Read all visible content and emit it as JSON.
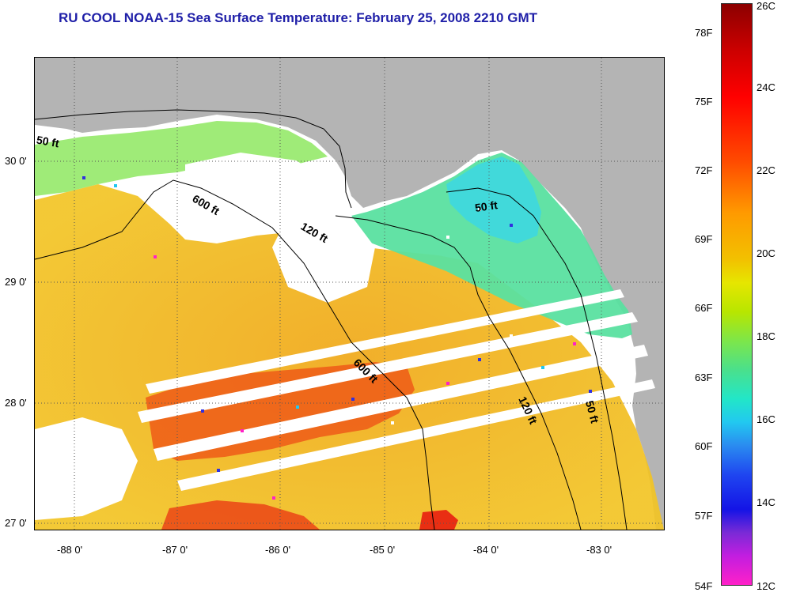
{
  "title": "RU COOL  NOAA-15  Sea Surface Temperature:  February 25, 2008 2210 GMT",
  "map": {
    "latitude_labels": [
      "30 0'",
      "29 0'",
      "28 0'",
      "27 0'"
    ],
    "longitude_labels": [
      "-88 0'",
      "-87 0'",
      "-86 0'",
      "-85 0'",
      "-84 0'",
      "-83 0'"
    ],
    "contour_labels": [
      "50 ft",
      "600 ft",
      "120 ft",
      "50 ft",
      "600 ft",
      "120 ft",
      "50 ft"
    ],
    "colors": {
      "land": "#b4b4b4",
      "ocean_cloud": "#ffffff",
      "grid": "#555555",
      "contour": "#000000"
    }
  },
  "colorbar": {
    "fahrenheit_labels": [
      "78F",
      "75F",
      "72F",
      "69F",
      "66F",
      "63F",
      "60F",
      "57F",
      "54F"
    ],
    "celsius_labels": [
      "26C",
      "24C",
      "22C",
      "20C",
      "18C",
      "16C",
      "14C",
      "12C"
    ]
  }
}
